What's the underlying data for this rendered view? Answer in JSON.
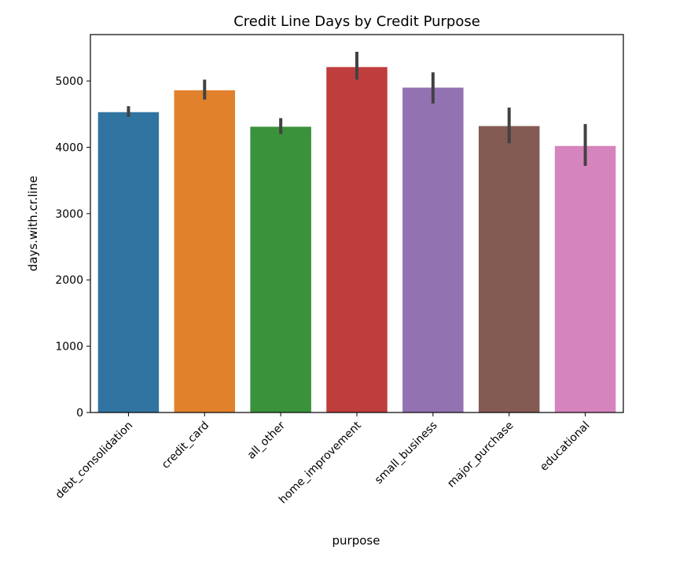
{
  "chart_data": {
    "type": "bar",
    "title": "Credit Line Days by Credit Purpose",
    "xlabel": "purpose",
    "ylabel": "days.with.cr.line",
    "categories": [
      "debt_consolidation",
      "credit_card",
      "all_other",
      "home_improvement",
      "small_business",
      "major_purchase",
      "educational"
    ],
    "values": [
      4530,
      4860,
      4310,
      5210,
      4900,
      4320,
      4020
    ],
    "error_low": [
      4460,
      4720,
      4200,
      5020,
      4660,
      4060,
      3720
    ],
    "error_high": [
      4620,
      5020,
      4440,
      5440,
      5130,
      4600,
      4350
    ],
    "colors": [
      "#3274a1",
      "#e1812c",
      "#3a923a",
      "#c03d3e",
      "#9372b2",
      "#845b53",
      "#d684bd"
    ],
    "error_color": "#424242",
    "ylim": [
      0,
      5700
    ],
    "yticks": [
      0,
      1000,
      2000,
      3000,
      4000,
      5000
    ],
    "grid": false,
    "legend": "none"
  }
}
